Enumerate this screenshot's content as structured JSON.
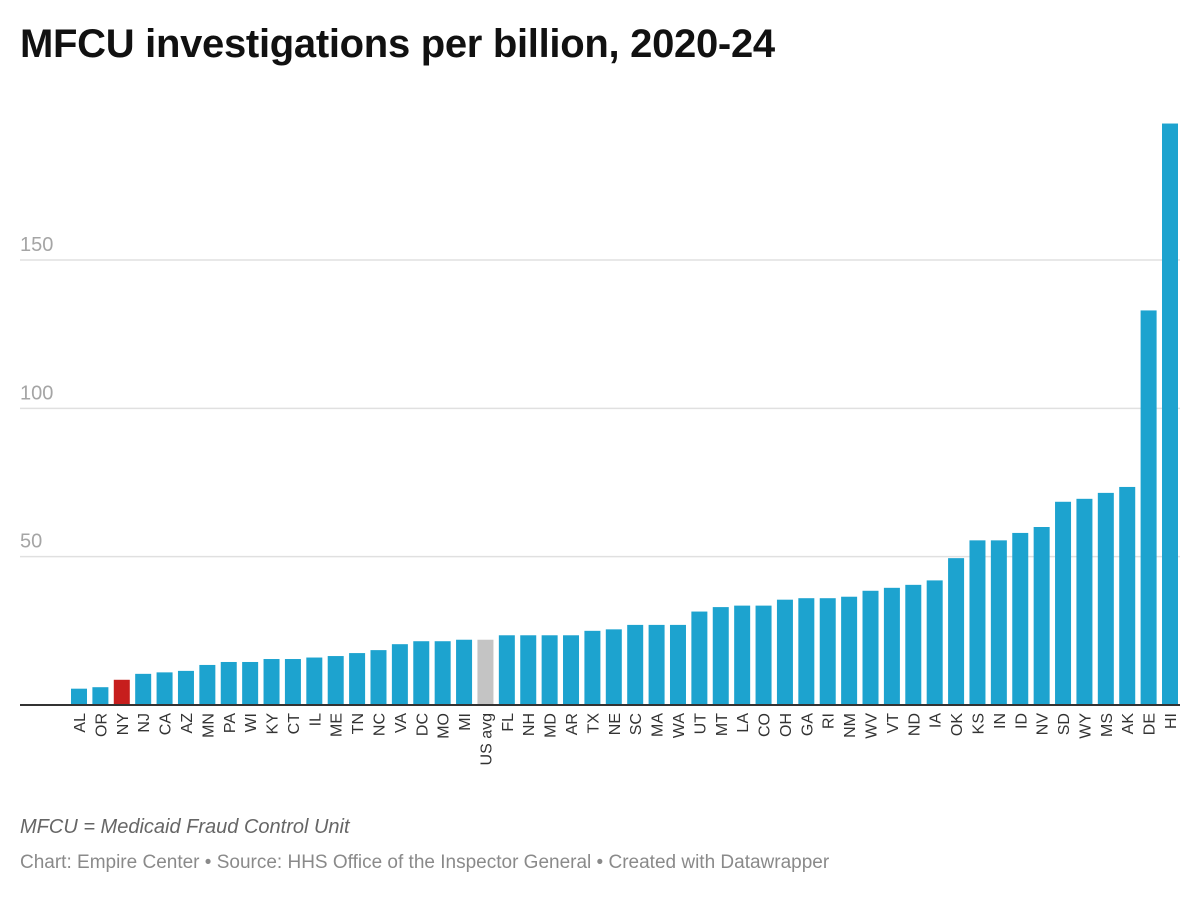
{
  "title": "MFCU investigations per billion, 2020-24",
  "note": "MFCU = Medicaid Fraud Control Unit",
  "footer": "Chart: Empire Center • Source: HHS Office of the Inspector General • Created with Datawrapper",
  "colors": {
    "bar": "#1da3cf",
    "highlight": "#c71e1d",
    "average": "#c4c4c4",
    "grid": "#e0e0e0",
    "baseline": "#333333"
  },
  "chart_data": {
    "type": "bar",
    "title": "MFCU investigations per billion, 2020-24",
    "xlabel": "",
    "ylabel": "",
    "ylim": [
      0,
      200
    ],
    "grid": true,
    "yticks": [
      50,
      100,
      150
    ],
    "highlight": "NY",
    "average_category": "US avg",
    "categories": [
      "AL",
      "OR",
      "NY",
      "NJ",
      "CA",
      "AZ",
      "MN",
      "PA",
      "WI",
      "KY",
      "CT",
      "IL",
      "ME",
      "TN",
      "NC",
      "VA",
      "DC",
      "MO",
      "MI",
      "US avg",
      "FL",
      "NH",
      "MD",
      "AR",
      "TX",
      "NE",
      "SC",
      "MA",
      "WA",
      "UT",
      "MT",
      "LA",
      "CO",
      "OH",
      "GA",
      "RI",
      "NM",
      "WV",
      "VT",
      "ND",
      "IA",
      "OK",
      "KS",
      "IN",
      "ID",
      "NV",
      "SD",
      "WY",
      "MS",
      "AK",
      "DE",
      "HI"
    ],
    "values": [
      5.5,
      6,
      8.5,
      10.5,
      11,
      11.5,
      13.5,
      14.5,
      14.5,
      15.5,
      15.5,
      16,
      16.5,
      17.5,
      18.5,
      20.5,
      21.5,
      21.5,
      22,
      22,
      23.5,
      23.5,
      23.5,
      23.5,
      25,
      25.5,
      27,
      27,
      27,
      31.5,
      33,
      33.5,
      33.5,
      35.5,
      36,
      36,
      36.5,
      38.5,
      39.5,
      40.5,
      42,
      49.5,
      55.5,
      55.5,
      58,
      60,
      68.5,
      69.5,
      71.5,
      73.5,
      133,
      196
    ]
  }
}
